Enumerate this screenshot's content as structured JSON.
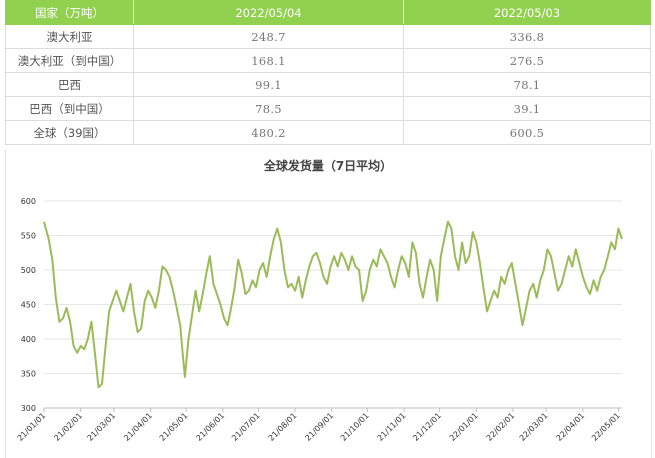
{
  "table": {
    "headers": [
      "国家（万吨）",
      "2022/05/04",
      "2022/05/03"
    ],
    "rows": [
      {
        "label": "澳大利亚",
        "v1": "248.7",
        "v2": "336.8"
      },
      {
        "label": "澳大利亚（到中国）",
        "v1": "168.1",
        "v2": "276.5"
      },
      {
        "label": "巴西",
        "v1": "99.1",
        "v2": "78.1"
      },
      {
        "label": "巴西（到中国）",
        "v1": "78.5",
        "v2": "39.1"
      },
      {
        "label": "全球（39国）",
        "v1": "480.2",
        "v2": "600.5"
      }
    ]
  },
  "chart_data": {
    "type": "line",
    "title": "全球发货量（7日平均）",
    "xlabel": "",
    "ylabel": "",
    "ylim": [
      300,
      600
    ],
    "yticks": [
      300,
      350,
      400,
      450,
      500,
      550,
      600
    ],
    "xticks": [
      "21/01/01",
      "21/02/01",
      "21/03/01",
      "21/04/01",
      "21/05/01",
      "21/06/01",
      "21/07/01",
      "21/08/01",
      "21/09/01",
      "21/10/01",
      "21/11/01",
      "21/12/01",
      "22/01/01",
      "22/02/01",
      "22/03/01",
      "22/04/01",
      "22/05/01"
    ],
    "x_range": [
      "21/01/01",
      "22/05/04"
    ],
    "line_color": "#9bbb59",
    "grid": "horizontal",
    "series": [
      {
        "points": [
          [
            "21/01/01",
            570
          ],
          [
            "21/01/05",
            545
          ],
          [
            "21/01/08",
            515
          ],
          [
            "21/01/11",
            460
          ],
          [
            "21/01/14",
            425
          ],
          [
            "21/01/17",
            430
          ],
          [
            "21/01/20",
            445
          ],
          [
            "21/01/23",
            425
          ],
          [
            "21/01/26",
            390
          ],
          [
            "21/01/29",
            380
          ],
          [
            "21/02/01",
            390
          ],
          [
            "21/02/04",
            385
          ],
          [
            "21/02/07",
            400
          ],
          [
            "21/02/10",
            425
          ],
          [
            "21/02/13",
            380
          ],
          [
            "21/02/16",
            330
          ],
          [
            "21/02/19",
            335
          ],
          [
            "21/02/22",
            390
          ],
          [
            "21/02/25",
            440
          ],
          [
            "21/02/28",
            455
          ],
          [
            "21/03/03",
            470
          ],
          [
            "21/03/06",
            455
          ],
          [
            "21/03/09",
            440
          ],
          [
            "21/03/12",
            460
          ],
          [
            "21/03/15",
            480
          ],
          [
            "21/03/18",
            440
          ],
          [
            "21/03/21",
            410
          ],
          [
            "21/03/24",
            415
          ],
          [
            "21/03/27",
            455
          ],
          [
            "21/03/30",
            470
          ],
          [
            "21/04/02",
            460
          ],
          [
            "21/04/05",
            445
          ],
          [
            "21/04/08",
            470
          ],
          [
            "21/04/11",
            505
          ],
          [
            "21/04/14",
            500
          ],
          [
            "21/04/17",
            490
          ],
          [
            "21/04/20",
            470
          ],
          [
            "21/04/23",
            445
          ],
          [
            "21/04/26",
            420
          ],
          [
            "21/04/28",
            380
          ],
          [
            "21/04/30",
            345
          ],
          [
            "21/05/03",
            400
          ],
          [
            "21/05/06",
            435
          ],
          [
            "21/05/09",
            470
          ],
          [
            "21/05/12",
            440
          ],
          [
            "21/05/15",
            465
          ],
          [
            "21/05/18",
            495
          ],
          [
            "21/05/21",
            520
          ],
          [
            "21/05/24",
            480
          ],
          [
            "21/05/27",
            465
          ],
          [
            "21/05/30",
            450
          ],
          [
            "21/06/02",
            430
          ],
          [
            "21/06/05",
            420
          ],
          [
            "21/06/08",
            445
          ],
          [
            "21/06/11",
            475
          ],
          [
            "21/06/14",
            515
          ],
          [
            "21/06/17",
            495
          ],
          [
            "21/06/20",
            465
          ],
          [
            "21/06/23",
            470
          ],
          [
            "21/06/26",
            485
          ],
          [
            "21/06/29",
            475
          ],
          [
            "21/07/02",
            500
          ],
          [
            "21/07/05",
            510
          ],
          [
            "21/07/08",
            490
          ],
          [
            "21/07/11",
            520
          ],
          [
            "21/07/14",
            545
          ],
          [
            "21/07/17",
            560
          ],
          [
            "21/07/20",
            540
          ],
          [
            "21/07/23",
            500
          ],
          [
            "21/07/26",
            475
          ],
          [
            "21/07/29",
            480
          ],
          [
            "21/08/01",
            470
          ],
          [
            "21/08/04",
            490
          ],
          [
            "21/08/07",
            460
          ],
          [
            "21/08/10",
            485
          ],
          [
            "21/08/13",
            505
          ],
          [
            "21/08/16",
            520
          ],
          [
            "21/08/19",
            525
          ],
          [
            "21/08/22",
            510
          ],
          [
            "21/08/25",
            490
          ],
          [
            "21/08/28",
            480
          ],
          [
            "21/08/31",
            505
          ],
          [
            "21/09/03",
            520
          ],
          [
            "21/09/06",
            505
          ],
          [
            "21/09/09",
            525
          ],
          [
            "21/09/12",
            515
          ],
          [
            "21/09/15",
            500
          ],
          [
            "21/09/18",
            520
          ],
          [
            "21/09/21",
            505
          ],
          [
            "21/09/24",
            500
          ],
          [
            "21/09/27",
            455
          ],
          [
            "21/09/30",
            470
          ],
          [
            "21/10/03",
            500
          ],
          [
            "21/10/06",
            515
          ],
          [
            "21/10/09",
            505
          ],
          [
            "21/10/12",
            530
          ],
          [
            "21/10/15",
            520
          ],
          [
            "21/10/18",
            510
          ],
          [
            "21/10/21",
            490
          ],
          [
            "21/10/24",
            475
          ],
          [
            "21/10/27",
            500
          ],
          [
            "21/10/30",
            520
          ],
          [
            "21/11/02",
            510
          ],
          [
            "21/11/05",
            490
          ],
          [
            "21/11/08",
            540
          ],
          [
            "21/11/11",
            525
          ],
          [
            "21/11/14",
            480
          ],
          [
            "21/11/17",
            460
          ],
          [
            "21/11/20",
            490
          ],
          [
            "21/11/23",
            515
          ],
          [
            "21/11/26",
            500
          ],
          [
            "21/11/29",
            455
          ],
          [
            "21/12/02",
            520
          ],
          [
            "21/12/05",
            545
          ],
          [
            "21/12/08",
            570
          ],
          [
            "21/12/11",
            560
          ],
          [
            "21/12/14",
            520
          ],
          [
            "21/12/17",
            500
          ],
          [
            "21/12/20",
            540
          ],
          [
            "21/12/23",
            510
          ],
          [
            "21/12/26",
            520
          ],
          [
            "21/12/29",
            555
          ],
          [
            "22/01/01",
            540
          ],
          [
            "22/01/04",
            510
          ],
          [
            "22/01/07",
            475
          ],
          [
            "22/01/10",
            440
          ],
          [
            "22/01/13",
            455
          ],
          [
            "22/01/16",
            470
          ],
          [
            "22/01/19",
            460
          ],
          [
            "22/01/22",
            490
          ],
          [
            "22/01/25",
            480
          ],
          [
            "22/01/28",
            500
          ],
          [
            "22/01/31",
            510
          ],
          [
            "22/02/03",
            480
          ],
          [
            "22/02/06",
            450
          ],
          [
            "22/02/09",
            420
          ],
          [
            "22/02/12",
            445
          ],
          [
            "22/02/15",
            470
          ],
          [
            "22/02/18",
            480
          ],
          [
            "22/02/21",
            460
          ],
          [
            "22/02/24",
            485
          ],
          [
            "22/02/27",
            500
          ],
          [
            "22/03/02",
            530
          ],
          [
            "22/03/05",
            520
          ],
          [
            "22/03/08",
            495
          ],
          [
            "22/03/11",
            470
          ],
          [
            "22/03/14",
            480
          ],
          [
            "22/03/17",
            500
          ],
          [
            "22/03/20",
            520
          ],
          [
            "22/03/23",
            505
          ],
          [
            "22/03/26",
            530
          ],
          [
            "22/03/29",
            510
          ],
          [
            "22/04/01",
            490
          ],
          [
            "22/04/04",
            475
          ],
          [
            "22/04/07",
            465
          ],
          [
            "22/04/10",
            485
          ],
          [
            "22/04/13",
            470
          ],
          [
            "22/04/16",
            490
          ],
          [
            "22/04/19",
            500
          ],
          [
            "22/04/22",
            520
          ],
          [
            "22/04/25",
            540
          ],
          [
            "22/04/28",
            530
          ],
          [
            "22/05/01",
            560
          ],
          [
            "22/05/04",
            545
          ]
        ]
      }
    ]
  }
}
